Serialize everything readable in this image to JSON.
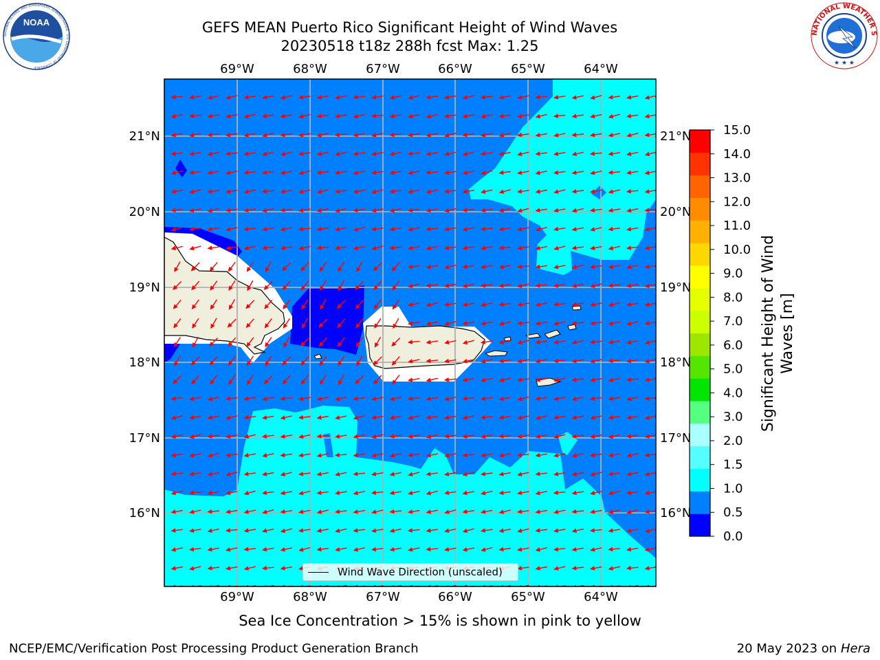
{
  "header": {
    "title_line1": "GEFS MEAN Puerto Rico Significant Height of Wind Waves",
    "title_line2": "20230518 t18z 288h fcst   Max: 1.25"
  },
  "logos": {
    "left": "NOAA",
    "left_ring": "NATIONAL OCEANIC AND ATMOSPHERIC ADMINISTRATION · U.S. DEPARTMENT OF COMMERCE",
    "right_ring": "NATIONAL WEATHER SERVICE"
  },
  "map": {
    "lon_labels": [
      "69°W",
      "68°W",
      "67°W",
      "66°W",
      "65°W",
      "64°W"
    ],
    "lat_labels": [
      "21°N",
      "20°N",
      "19°N",
      "18°N",
      "17°N",
      "16°N"
    ],
    "grid": true,
    "background_color": "#0080ff",
    "band_colors": {
      "0.0-0.5": "#0000ff",
      "0.5-1.0": "#0080ff",
      "1.0-1.5": "#00ffff"
    },
    "land_color": "#f0eedc",
    "arrow_color": "#ff0000",
    "legend_label": "Wind Wave Direction (unscaled)"
  },
  "colorbar": {
    "title": "Significant Height of Wind Waves [m]",
    "title_line1": "Significant Height of Wind",
    "title_line2": "Waves [m]",
    "ticks": [
      "15.0",
      "14.0",
      "13.0",
      "12.0",
      "11.0",
      "10.0",
      "9.0",
      "8.0",
      "7.0",
      "6.0",
      "5.0",
      "4.0",
      "3.0",
      "2.0",
      "1.5",
      "1.0",
      "0.5",
      "0.0"
    ],
    "colors_bottom_to_top": [
      "#0000ff",
      "#0080ff",
      "#00ffff",
      "#55ffff",
      "#aaffff",
      "#55ff7f",
      "#00e600",
      "#55e600",
      "#9ee600",
      "#ccff00",
      "#e6ff00",
      "#ffff00",
      "#ffd700",
      "#ffb000",
      "#ff8c00",
      "#ff6400",
      "#ff3200",
      "#ff0000"
    ]
  },
  "note": "Sea Ice Concentration > 15% is shown in pink to yellow",
  "footer": {
    "left": "NCEP/EMC/Verification Post Processing Product Generation Branch",
    "right_prefix": "20 May 2023 on",
    "right_host": "Hera"
  }
}
